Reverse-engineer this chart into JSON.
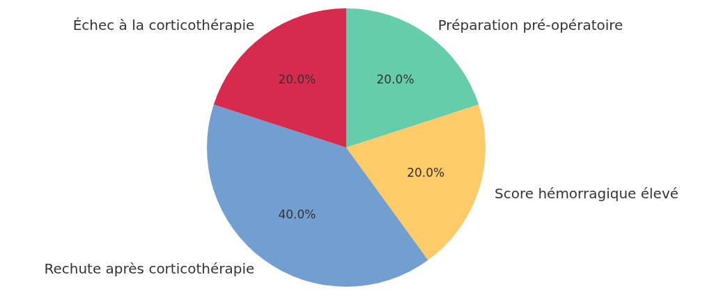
{
  "chart_data": {
    "type": "pie",
    "categories": [
      "Préparation pré-opératoire",
      "Score hémorragique élevé",
      "Rechute après corticothérapie",
      "Échec à la corticothérapie"
    ],
    "values": [
      20,
      20,
      40,
      20
    ],
    "colors": [
      "#66cdaa",
      "#fecb69",
      "#729fcf",
      "#d62b4d"
    ],
    "value_labels": [
      "20.0%",
      "20.0%",
      "40.0%",
      "20.0%"
    ]
  }
}
